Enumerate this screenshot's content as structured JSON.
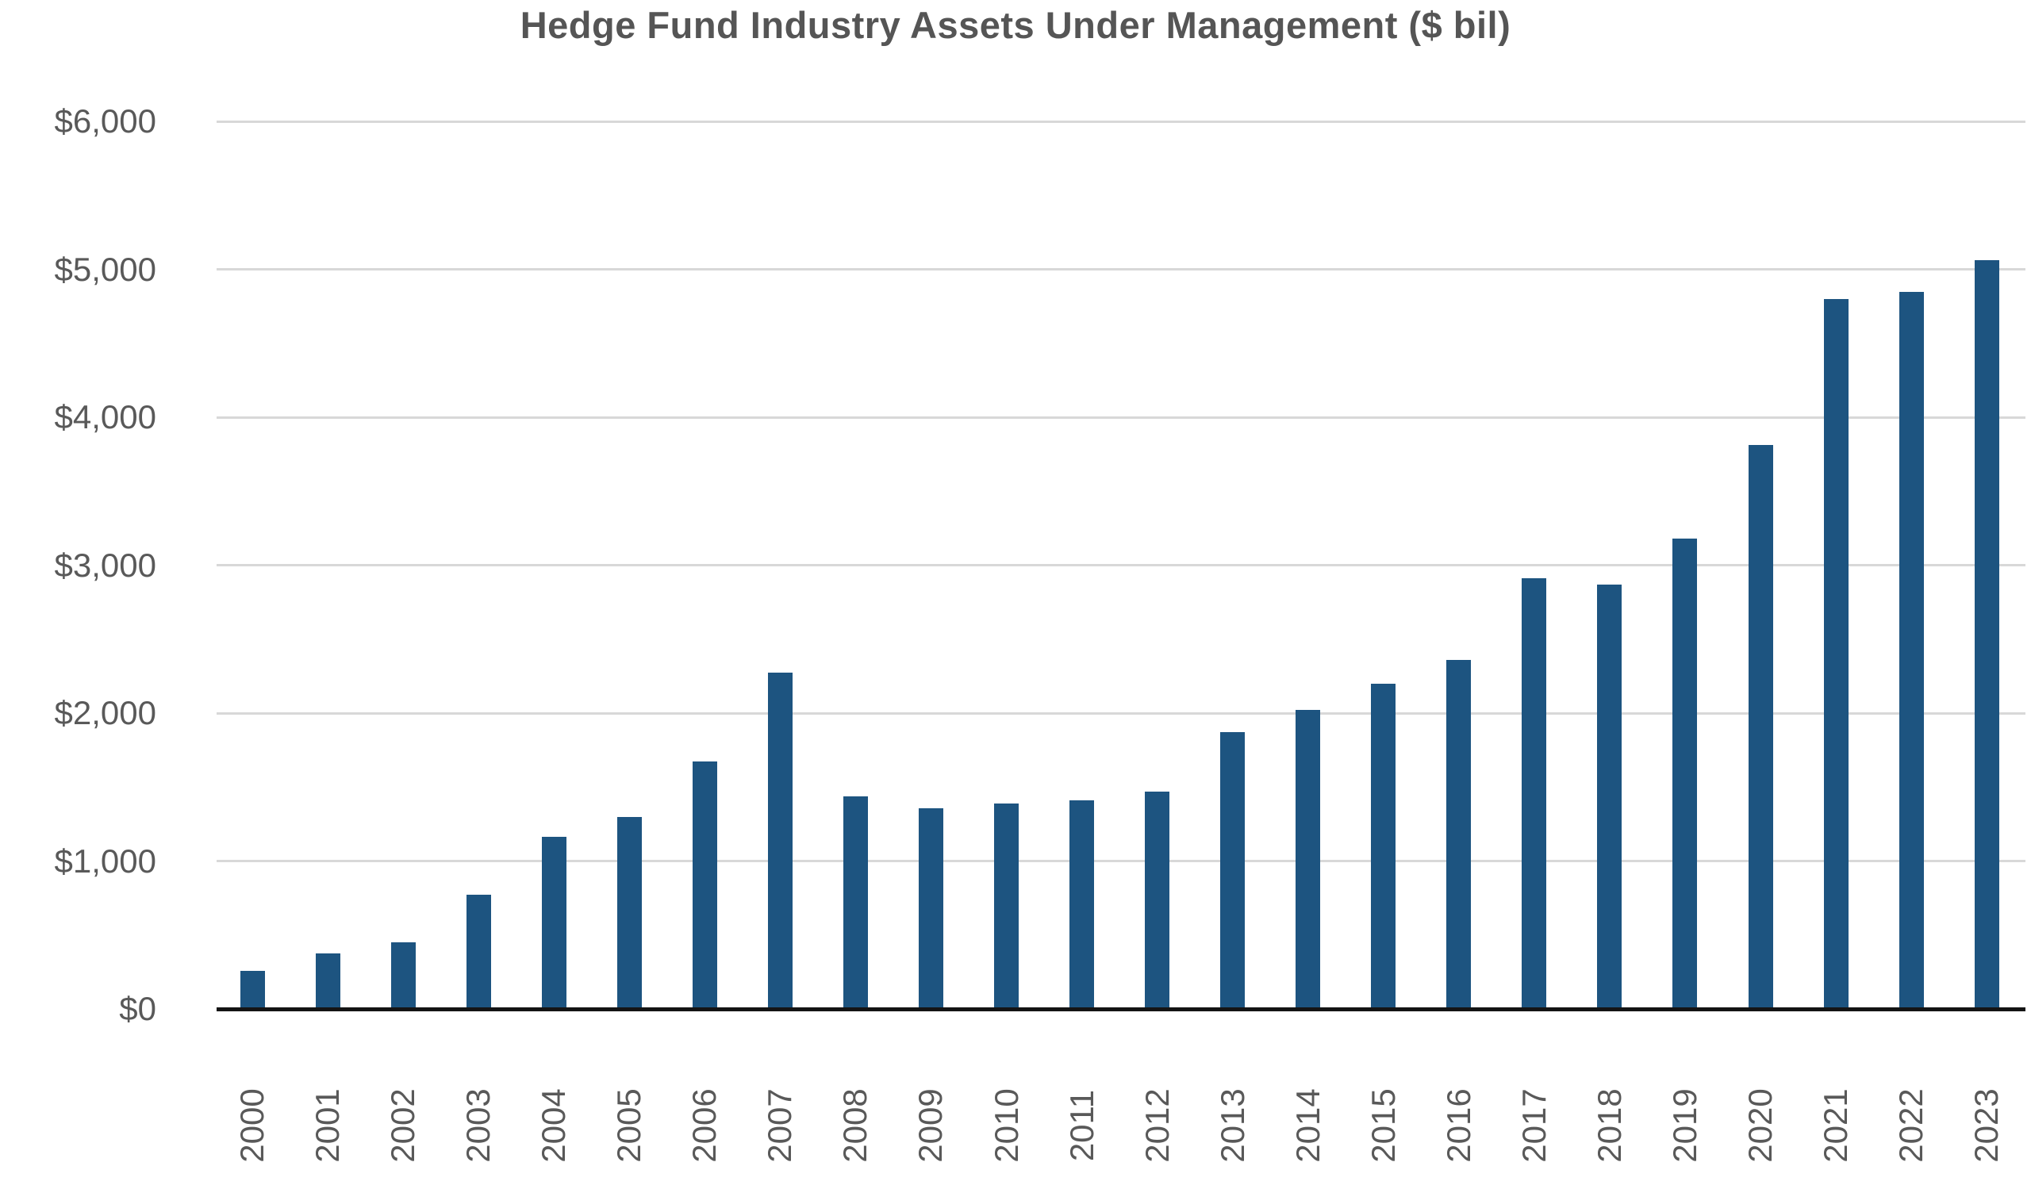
{
  "title": "Hedge Fund Industry Assets Under Management ($ bil)",
  "colors": {
    "bar": "#1d5480",
    "gridline": "#d8d8d8",
    "axis_line": "#141414",
    "tick_text": "#595959",
    "title_text": "#555555"
  },
  "chart_data": {
    "type": "bar",
    "title": "Hedge Fund Industry Assets Under Management ($ bil)",
    "xlabel": "",
    "ylabel": "",
    "categories": [
      "2000",
      "2001",
      "2002",
      "2003",
      "2004",
      "2005",
      "2006",
      "2007",
      "2008",
      "2009",
      "2010",
      "2011",
      "2012",
      "2013",
      "2014",
      "2015",
      "2016",
      "2017",
      "2018",
      "2019",
      "2020",
      "2021",
      "2022",
      "2023"
    ],
    "values": [
      260,
      375,
      450,
      770,
      1165,
      1300,
      1675,
      2275,
      1435,
      1355,
      1390,
      1410,
      1470,
      1870,
      2020,
      2200,
      2360,
      2910,
      2870,
      3180,
      3815,
      4800,
      4845,
      5060
    ],
    "ylim": [
      0,
      6000
    ],
    "ytick_values": [
      0,
      1000,
      2000,
      3000,
      4000,
      5000,
      6000
    ],
    "ytick_labels": [
      "$0",
      "$1,000",
      "$2,000",
      "$3,000",
      "$4,000",
      "$5,000",
      "$6,000"
    ],
    "grid": true,
    "legend": false,
    "x_tick_rotation": -90,
    "bar_color": "#1d5480"
  }
}
